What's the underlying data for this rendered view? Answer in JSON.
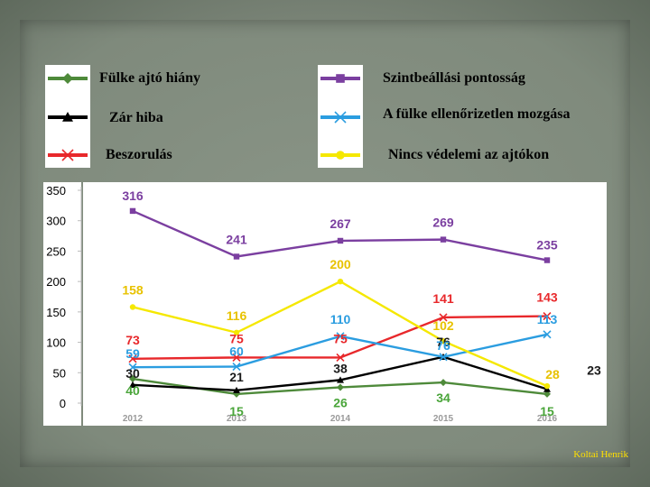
{
  "legend": [
    {
      "label": "Fülke ajtó hiány",
      "color": "#4e8a3a",
      "marker": "diamond"
    },
    {
      "label": "Zár hiba",
      "color": "#000000",
      "marker": "triangle"
    },
    {
      "label": "Beszorulás",
      "color": "#e8282b",
      "marker": "x"
    },
    {
      "label": "Szintbeállási pontosság",
      "color": "#7b3fa0",
      "marker": "square"
    },
    {
      "label": "A fülke ellenőrizetlen mozgása",
      "color": "#2b9de0",
      "marker": "x"
    },
    {
      "label": "Nincs védelemi az ajtókon",
      "color": "#f5e800",
      "marker": "circle"
    }
  ],
  "credit": "Koltai Henrik",
  "chart_data": {
    "type": "line",
    "title": "",
    "xlabel": "",
    "ylabel": "",
    "x": [
      "2012",
      "2013",
      "2014",
      "2015",
      "2016"
    ],
    "ylim": [
      0,
      350
    ],
    "yticks": [
      "0",
      "50",
      "100",
      "150",
      "200",
      "250",
      "300",
      "350"
    ],
    "grid": false,
    "series": [
      {
        "name": "Fülke ajtó hiány",
        "color": "#4e8a3a",
        "values": [
          40,
          15,
          26,
          34,
          15
        ],
        "labels": [
          "40",
          "15",
          "26",
          "34",
          "15"
        ]
      },
      {
        "name": "Zár hiba",
        "color": "#000000",
        "values": [
          30,
          21,
          38,
          76,
          23
        ],
        "labels": [
          "30",
          "21",
          "38",
          "76",
          "23"
        ]
      },
      {
        "name": "Beszorulás",
        "color": "#e8282b",
        "values": [
          73,
          75,
          75,
          141,
          143
        ],
        "labels": [
          "73",
          "75",
          "75",
          "141",
          "143"
        ]
      },
      {
        "name": "Szintbeállási pontosság",
        "color": "#7b3fa0",
        "values": [
          316,
          241,
          267,
          269,
          235
        ],
        "labels": [
          "316",
          "241",
          "267",
          "269",
          "235"
        ]
      },
      {
        "name": "A fülke ellenőrizetlen mozgása",
        "color": "#2b9de0",
        "values": [
          59,
          60,
          110,
          76,
          113
        ],
        "labels": [
          "59",
          "60",
          "110",
          "76",
          "113"
        ]
      },
      {
        "name": "Nincs védelemi az ajtókon",
        "color": "#f5e800",
        "values": [
          158,
          116,
          200,
          102,
          28
        ],
        "labels": [
          "158",
          "116",
          "200",
          "102",
          "28"
        ]
      }
    ]
  }
}
